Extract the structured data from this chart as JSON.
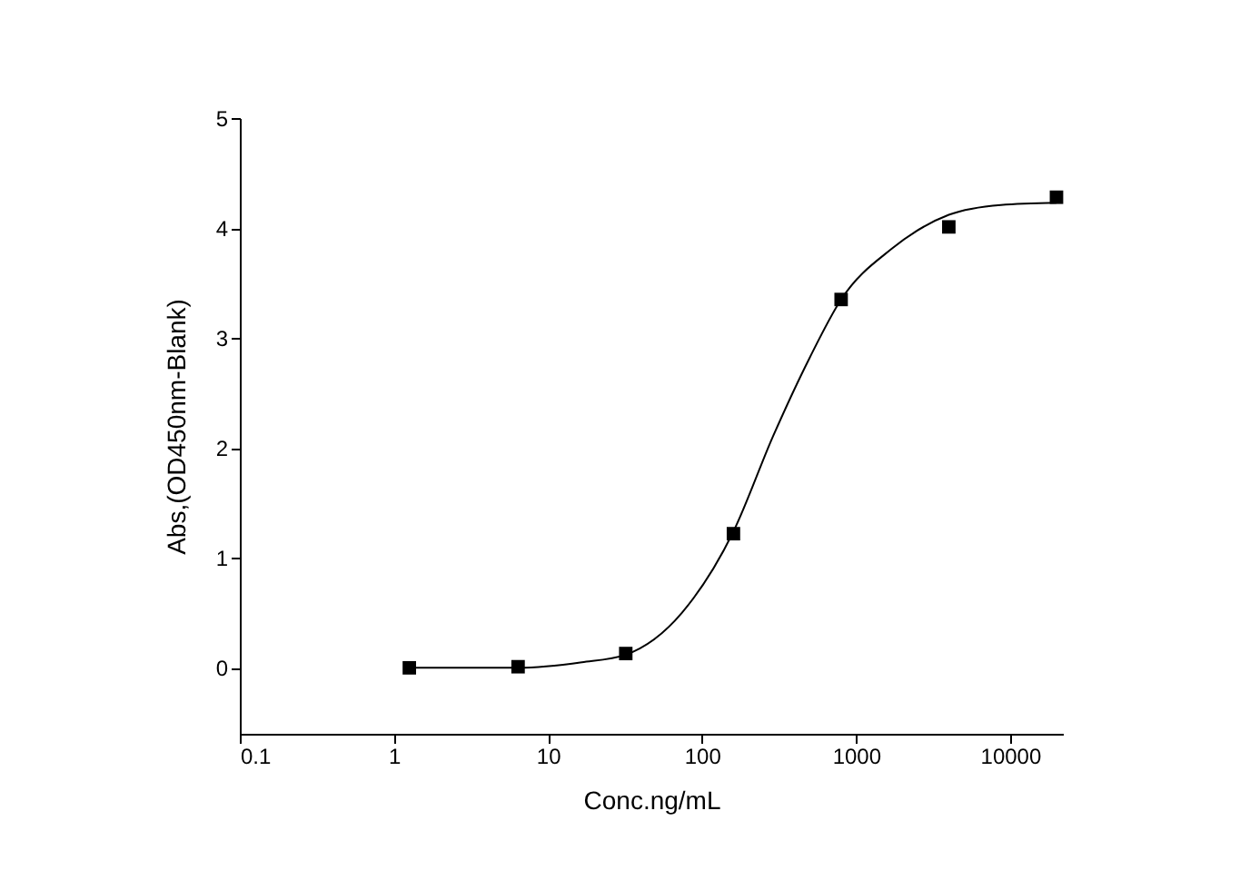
{
  "chart_data": {
    "type": "scatter",
    "xlabel": "Conc.ng/mL",
    "ylabel": "Abs,(OD450nm-Blank)",
    "log": "x",
    "grid": false,
    "marker": "square",
    "xlim": [
      0.1,
      22000
    ],
    "xticks": [
      0.1,
      1,
      10,
      100,
      1000,
      10000
    ],
    "ylim": [
      -0.6,
      5
    ],
    "yticks": [
      0,
      1,
      2,
      3,
      4,
      5
    ],
    "series": [
      {
        "color": "#000000",
        "x": [
          1.26,
          6.4,
          32,
          160,
          800,
          4000,
          20000
        ],
        "values": [
          0.0,
          0.01,
          0.13,
          1.22,
          3.35,
          4.01,
          4.28
        ]
      },
      {
        "type": "line",
        "color": "#000000",
        "line_style": "solid",
        "marker": "none",
        "x": [
          1.26,
          6.4,
          16.6,
          32,
          74,
          160,
          290,
          500,
          800,
          1700,
          4000,
          8700,
          20000
        ],
        "values": [
          0.0,
          0.0,
          0.05,
          0.12,
          0.5,
          1.24,
          2.11,
          2.82,
          3.35,
          3.81,
          4.12,
          4.21,
          4.23
        ]
      }
    ]
  }
}
